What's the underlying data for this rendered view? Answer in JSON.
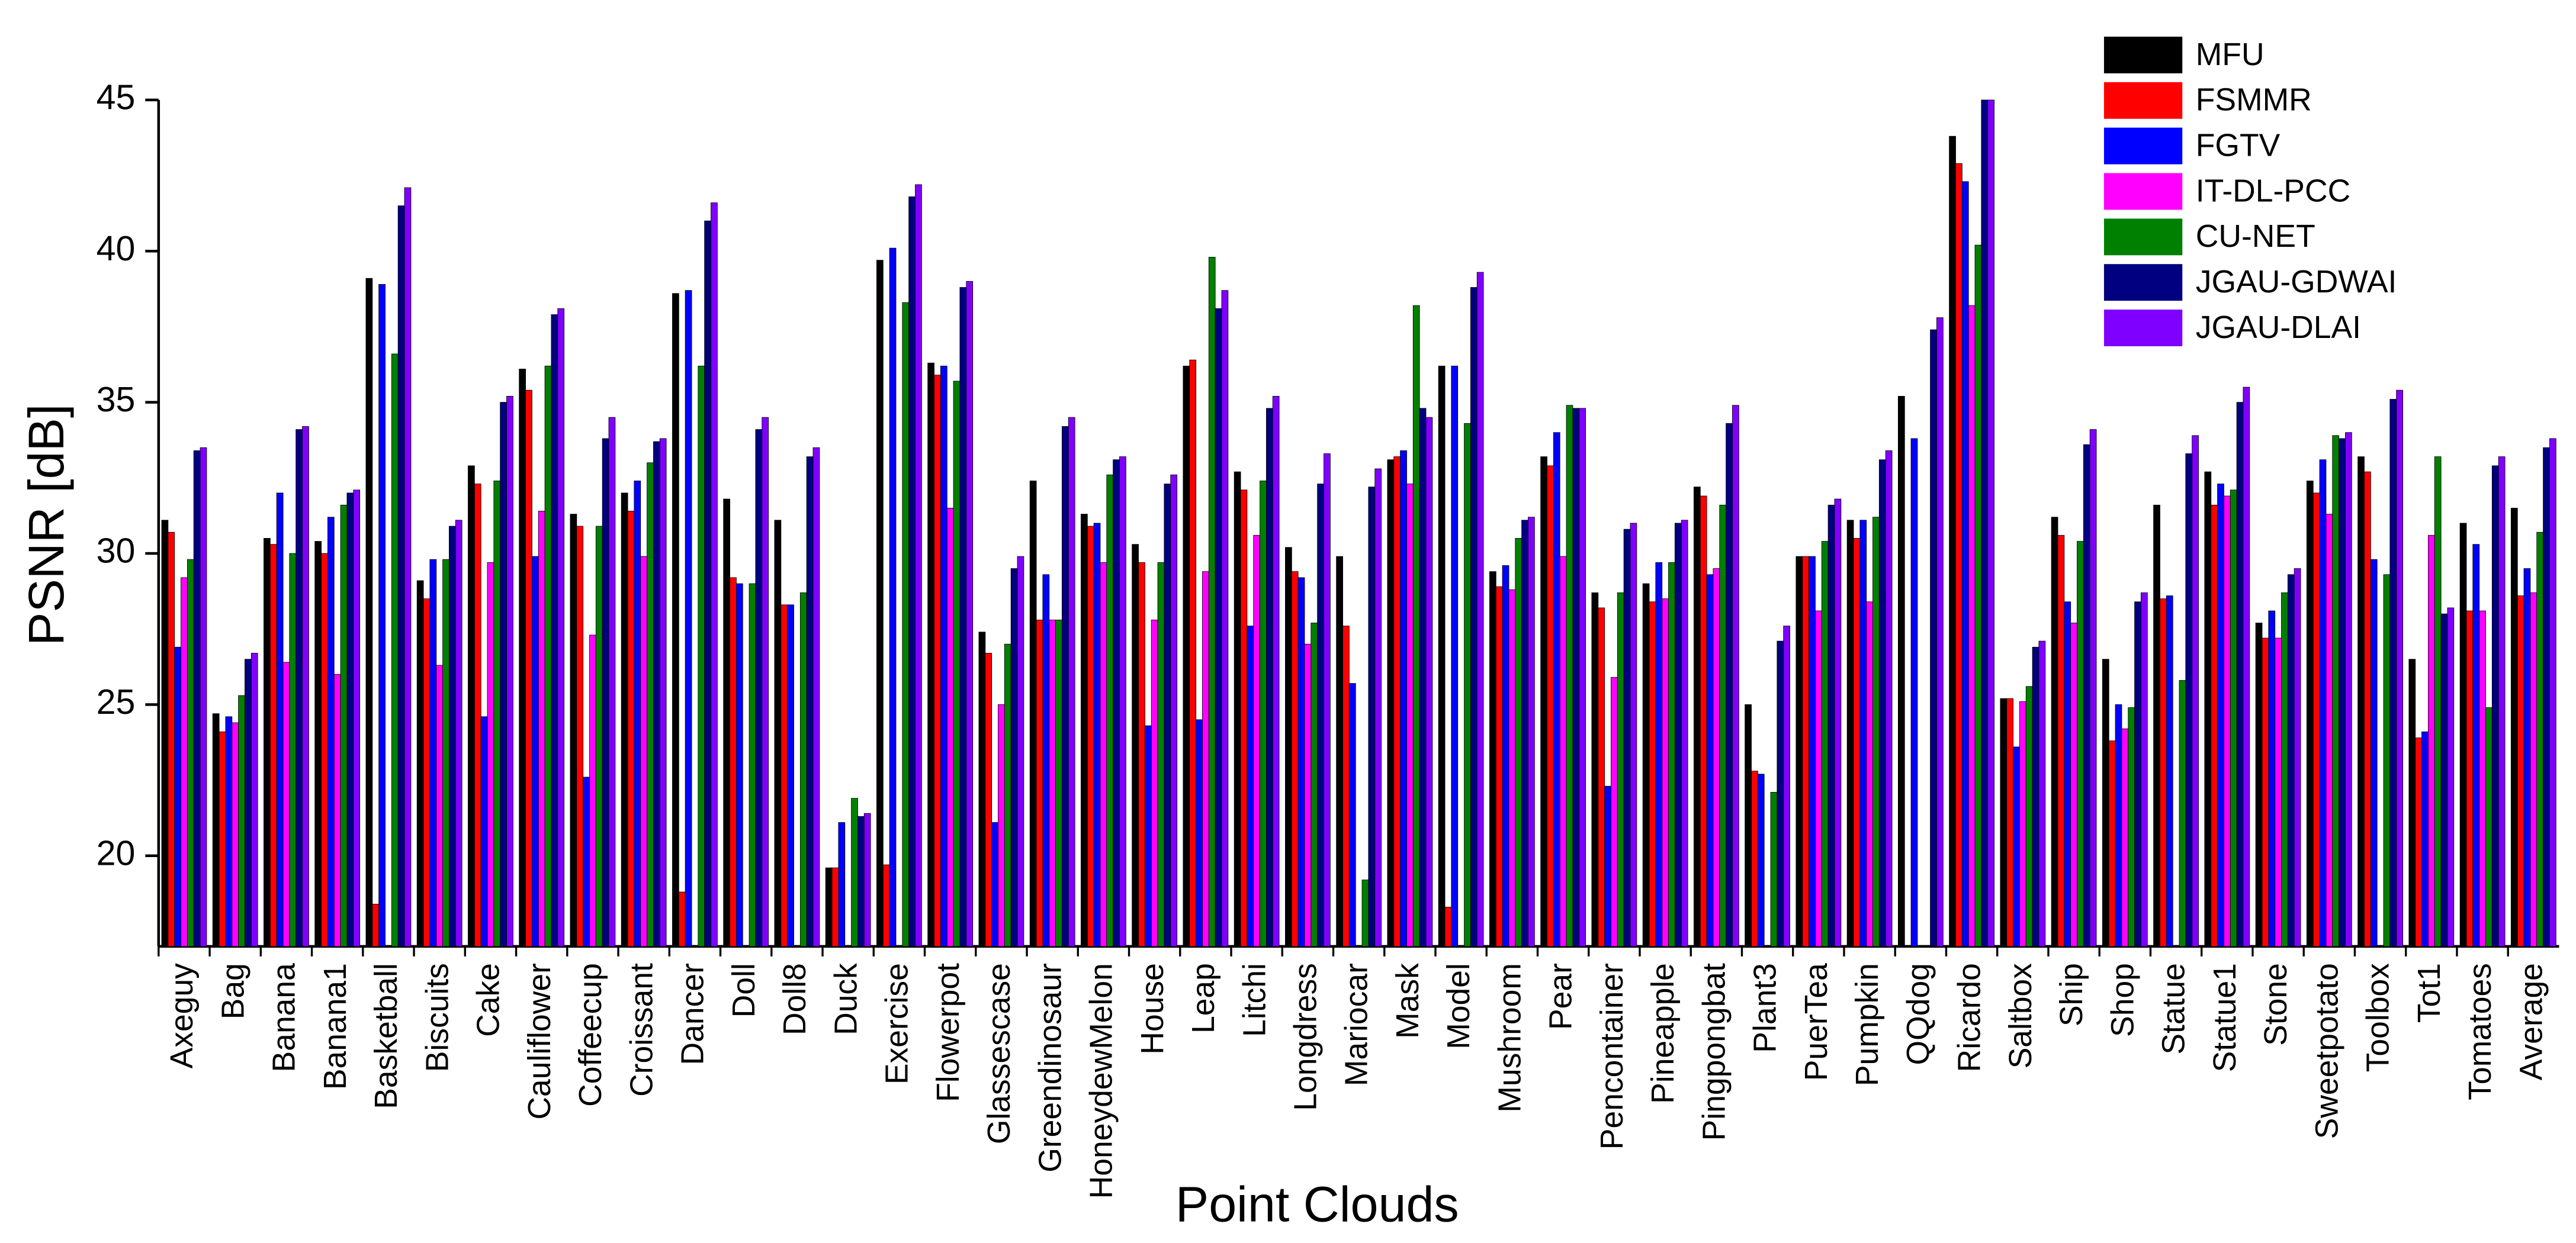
{
  "chart_data": {
    "type": "bar",
    "x_label": "Point Clouds",
    "y_label": "PSNR [dB]",
    "categories": [
      "Axeguy",
      "Bag",
      "Banana",
      "Banana1",
      "Basketball",
      "Biscuits",
      "Cake",
      "Cauliflower",
      "Coffeecup",
      "Croissant",
      "Dancer",
      "Doll",
      "Doll8",
      "Duck",
      "Exercise",
      "Flowerpot",
      "Glassescase",
      "Greendinosaur",
      "HoneydewMelon",
      "House",
      "Leap",
      "Litchi",
      "Longdress",
      "Mariocar",
      "Mask",
      "Model",
      "Mushroom",
      "Pear",
      "Pencontainer",
      "Pineapple",
      "Pingpongbat",
      "Plant3",
      "PuerTea",
      "Pumpkin",
      "QQdog",
      "Ricardo",
      "Saltbox",
      "Ship",
      "Shop",
      "Statue",
      "Statue1",
      "Stone",
      "Sweetpotato",
      "Toolbox",
      "Tot1",
      "Tomatoes",
      "Average"
    ],
    "series": [
      {
        "name": "MFU",
        "color": "#000000",
        "values": [
          31.1,
          24.7,
          30.5,
          30.4,
          39.1,
          29.1,
          32.9,
          36.1,
          31.3,
          32.0,
          38.6,
          31.8,
          31.1,
          19.6,
          39.7,
          36.3,
          27.4,
          32.4,
          31.3,
          30.3,
          36.2,
          32.7,
          30.2,
          29.9,
          33.1,
          36.2,
          29.4,
          33.2,
          28.7,
          29.0,
          32.2,
          25.0,
          29.9,
          31.1,
          35.2,
          43.8,
          25.2,
          31.2,
          26.5,
          31.6,
          32.7,
          27.7,
          32.4,
          33.2,
          26.5,
          31.0,
          31.5
        ]
      },
      {
        "name": "FSMMR",
        "color": "#ff0000",
        "values": [
          30.7,
          24.1,
          30.3,
          30.0,
          18.4,
          28.5,
          32.3,
          35.4,
          30.9,
          31.4,
          18.8,
          29.2,
          28.3,
          19.6,
          19.7,
          35.9,
          26.7,
          27.8,
          30.9,
          29.7,
          36.4,
          32.1,
          29.4,
          27.6,
          33.2,
          18.3,
          28.9,
          32.9,
          28.2,
          28.4,
          31.9,
          22.8,
          29.9,
          30.5,
          null,
          42.9,
          25.2,
          30.6,
          23.8,
          28.5,
          31.6,
          27.2,
          32.0,
          32.7,
          23.9,
          28.1,
          28.6
        ]
      },
      {
        "name": "FGTV",
        "color": "#0000ff",
        "values": [
          26.9,
          24.6,
          32.0,
          31.2,
          38.9,
          29.8,
          24.6,
          29.9,
          22.6,
          32.4,
          38.7,
          29.0,
          28.3,
          21.1,
          40.1,
          36.2,
          21.1,
          29.3,
          31.0,
          24.3,
          24.5,
          27.6,
          29.2,
          25.7,
          33.4,
          36.2,
          29.6,
          34.0,
          22.3,
          29.7,
          29.3,
          22.7,
          29.9,
          31.1,
          33.8,
          42.3,
          23.6,
          28.4,
          25.0,
          28.6,
          32.3,
          28.1,
          33.1,
          29.8,
          24.1,
          30.3,
          29.5
        ]
      },
      {
        "name": "IT-DL-PCC",
        "color": "#ff00ff",
        "values": [
          29.2,
          24.4,
          26.4,
          26.0,
          null,
          26.3,
          29.7,
          31.4,
          27.3,
          29.9,
          null,
          null,
          null,
          null,
          null,
          31.5,
          25.0,
          27.8,
          29.7,
          27.8,
          29.4,
          30.6,
          27.0,
          null,
          32.3,
          null,
          28.8,
          29.9,
          25.9,
          28.5,
          29.5,
          null,
          28.1,
          28.4,
          null,
          38.2,
          25.1,
          27.7,
          24.2,
          null,
          31.9,
          27.2,
          31.3,
          null,
          30.6,
          28.1,
          28.7
        ]
      },
      {
        "name": "CU-NET",
        "color": "#008000",
        "values": [
          29.8,
          25.3,
          30.0,
          31.6,
          36.6,
          29.8,
          32.4,
          36.2,
          30.9,
          33.0,
          36.2,
          29.0,
          28.7,
          21.9,
          38.3,
          35.7,
          27.0,
          27.8,
          32.6,
          29.7,
          39.8,
          32.4,
          27.7,
          19.2,
          38.2,
          34.3,
          30.5,
          34.9,
          28.7,
          29.7,
          31.6,
          22.1,
          30.4,
          31.2,
          null,
          40.2,
          25.6,
          30.4,
          24.9,
          25.8,
          32.1,
          28.7,
          33.9,
          29.3,
          33.2,
          24.9,
          30.7
        ]
      },
      {
        "name": "JGAU-GDWAI",
        "color": "#000080",
        "values": [
          33.4,
          26.5,
          34.1,
          32.0,
          41.5,
          30.9,
          35.0,
          37.9,
          33.8,
          33.7,
          41.0,
          34.1,
          33.2,
          21.3,
          41.8,
          38.8,
          29.5,
          34.2,
          33.1,
          32.3,
          38.1,
          34.8,
          32.3,
          32.2,
          34.8,
          38.8,
          31.1,
          34.8,
          30.8,
          31.0,
          34.3,
          27.1,
          31.6,
          33.1,
          37.4,
          45,
          26.9,
          33.6,
          28.4,
          33.3,
          35.0,
          29.3,
          33.8,
          35.1,
          28.0,
          32.9,
          33.5
        ]
      },
      {
        "name": "JGAU-DLAI",
        "color": "#8000ff",
        "values": [
          33.5,
          26.7,
          34.2,
          32.1,
          42.1,
          31.1,
          35.2,
          38.1,
          34.5,
          33.8,
          41.6,
          34.5,
          33.5,
          21.4,
          42.2,
          39.0,
          29.9,
          34.5,
          33.2,
          32.6,
          38.7,
          35.2,
          33.3,
          32.8,
          34.5,
          39.3,
          31.2,
          34.8,
          31.0,
          31.1,
          34.9,
          27.6,
          31.8,
          33.4,
          37.8,
          45,
          27.1,
          34.1,
          28.7,
          33.9,
          35.5,
          29.5,
          34.0,
          35.4,
          28.2,
          33.2,
          33.8
        ]
      }
    ],
    "ylim": [
      17,
      45
    ],
    "yticks": [
      20,
      25,
      30,
      35,
      40,
      45
    ],
    "legend": "upper right"
  }
}
